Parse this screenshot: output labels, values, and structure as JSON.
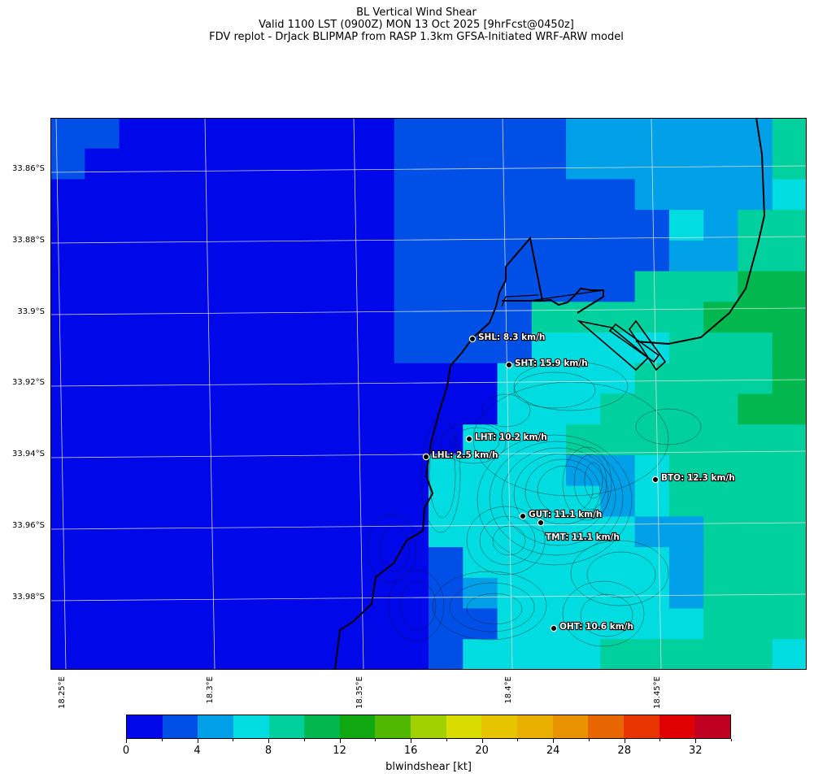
{
  "title": {
    "line1": "BL Vertical Wind Shear",
    "line2": "Valid 1100 LST (0900Z) MON 13 Oct 2025 [9hrFcst@0450z]",
    "line3": "FDV replot - DrJack BLIPMAP from RASP 1.3km GFSA-Initiated WRF-ARW model"
  },
  "axes": {
    "lat_labels": [
      "33.86°S",
      "33.88°S",
      "33.9°S",
      "33.92°S",
      "33.94°S",
      "33.96°S",
      "33.98°S"
    ],
    "lon_labels": [
      "18.25°E",
      "18.3°E",
      "18.35°E",
      "18.4°E",
      "18.45°E"
    ]
  },
  "colors": {
    "palette": [
      "#0008ea",
      "#0050e8",
      "#00a0e8",
      "#00dce0",
      "#00d09e",
      "#00b84e",
      "#10a810",
      "#50b800",
      "#a0d000",
      "#d8dc00",
      "#e6c400",
      "#e8b000",
      "#e89200",
      "#e86600",
      "#e83400",
      "#e00000",
      "#c00020"
    ],
    "coast": "#000000",
    "grid": "#d8d8d8"
  },
  "stations": [
    {
      "code": "SHL",
      "text": "SHL: 8.3 km/h"
    },
    {
      "code": "SHT",
      "text": "SHT: 15.9 km/h"
    },
    {
      "code": "LHT",
      "text": "LHT: 10.2 km/h"
    },
    {
      "code": "LHL",
      "text": "LHL: 2.5 km/h"
    },
    {
      "code": "BTO",
      "text": "BTO: 12.3 km/h"
    },
    {
      "code": "GUT",
      "text": "GUT: 11.1 km/h"
    },
    {
      "code": "TMT",
      "text": "TMT: 11.1 km/h"
    },
    {
      "code": "OHT",
      "text": "OHT: 10.6 km/h"
    }
  ],
  "colorbar": {
    "title": "blwindshear [kt]",
    "ticks": [
      "0",
      "4",
      "8",
      "12",
      "16",
      "20",
      "24",
      "28",
      "32"
    ]
  }
}
